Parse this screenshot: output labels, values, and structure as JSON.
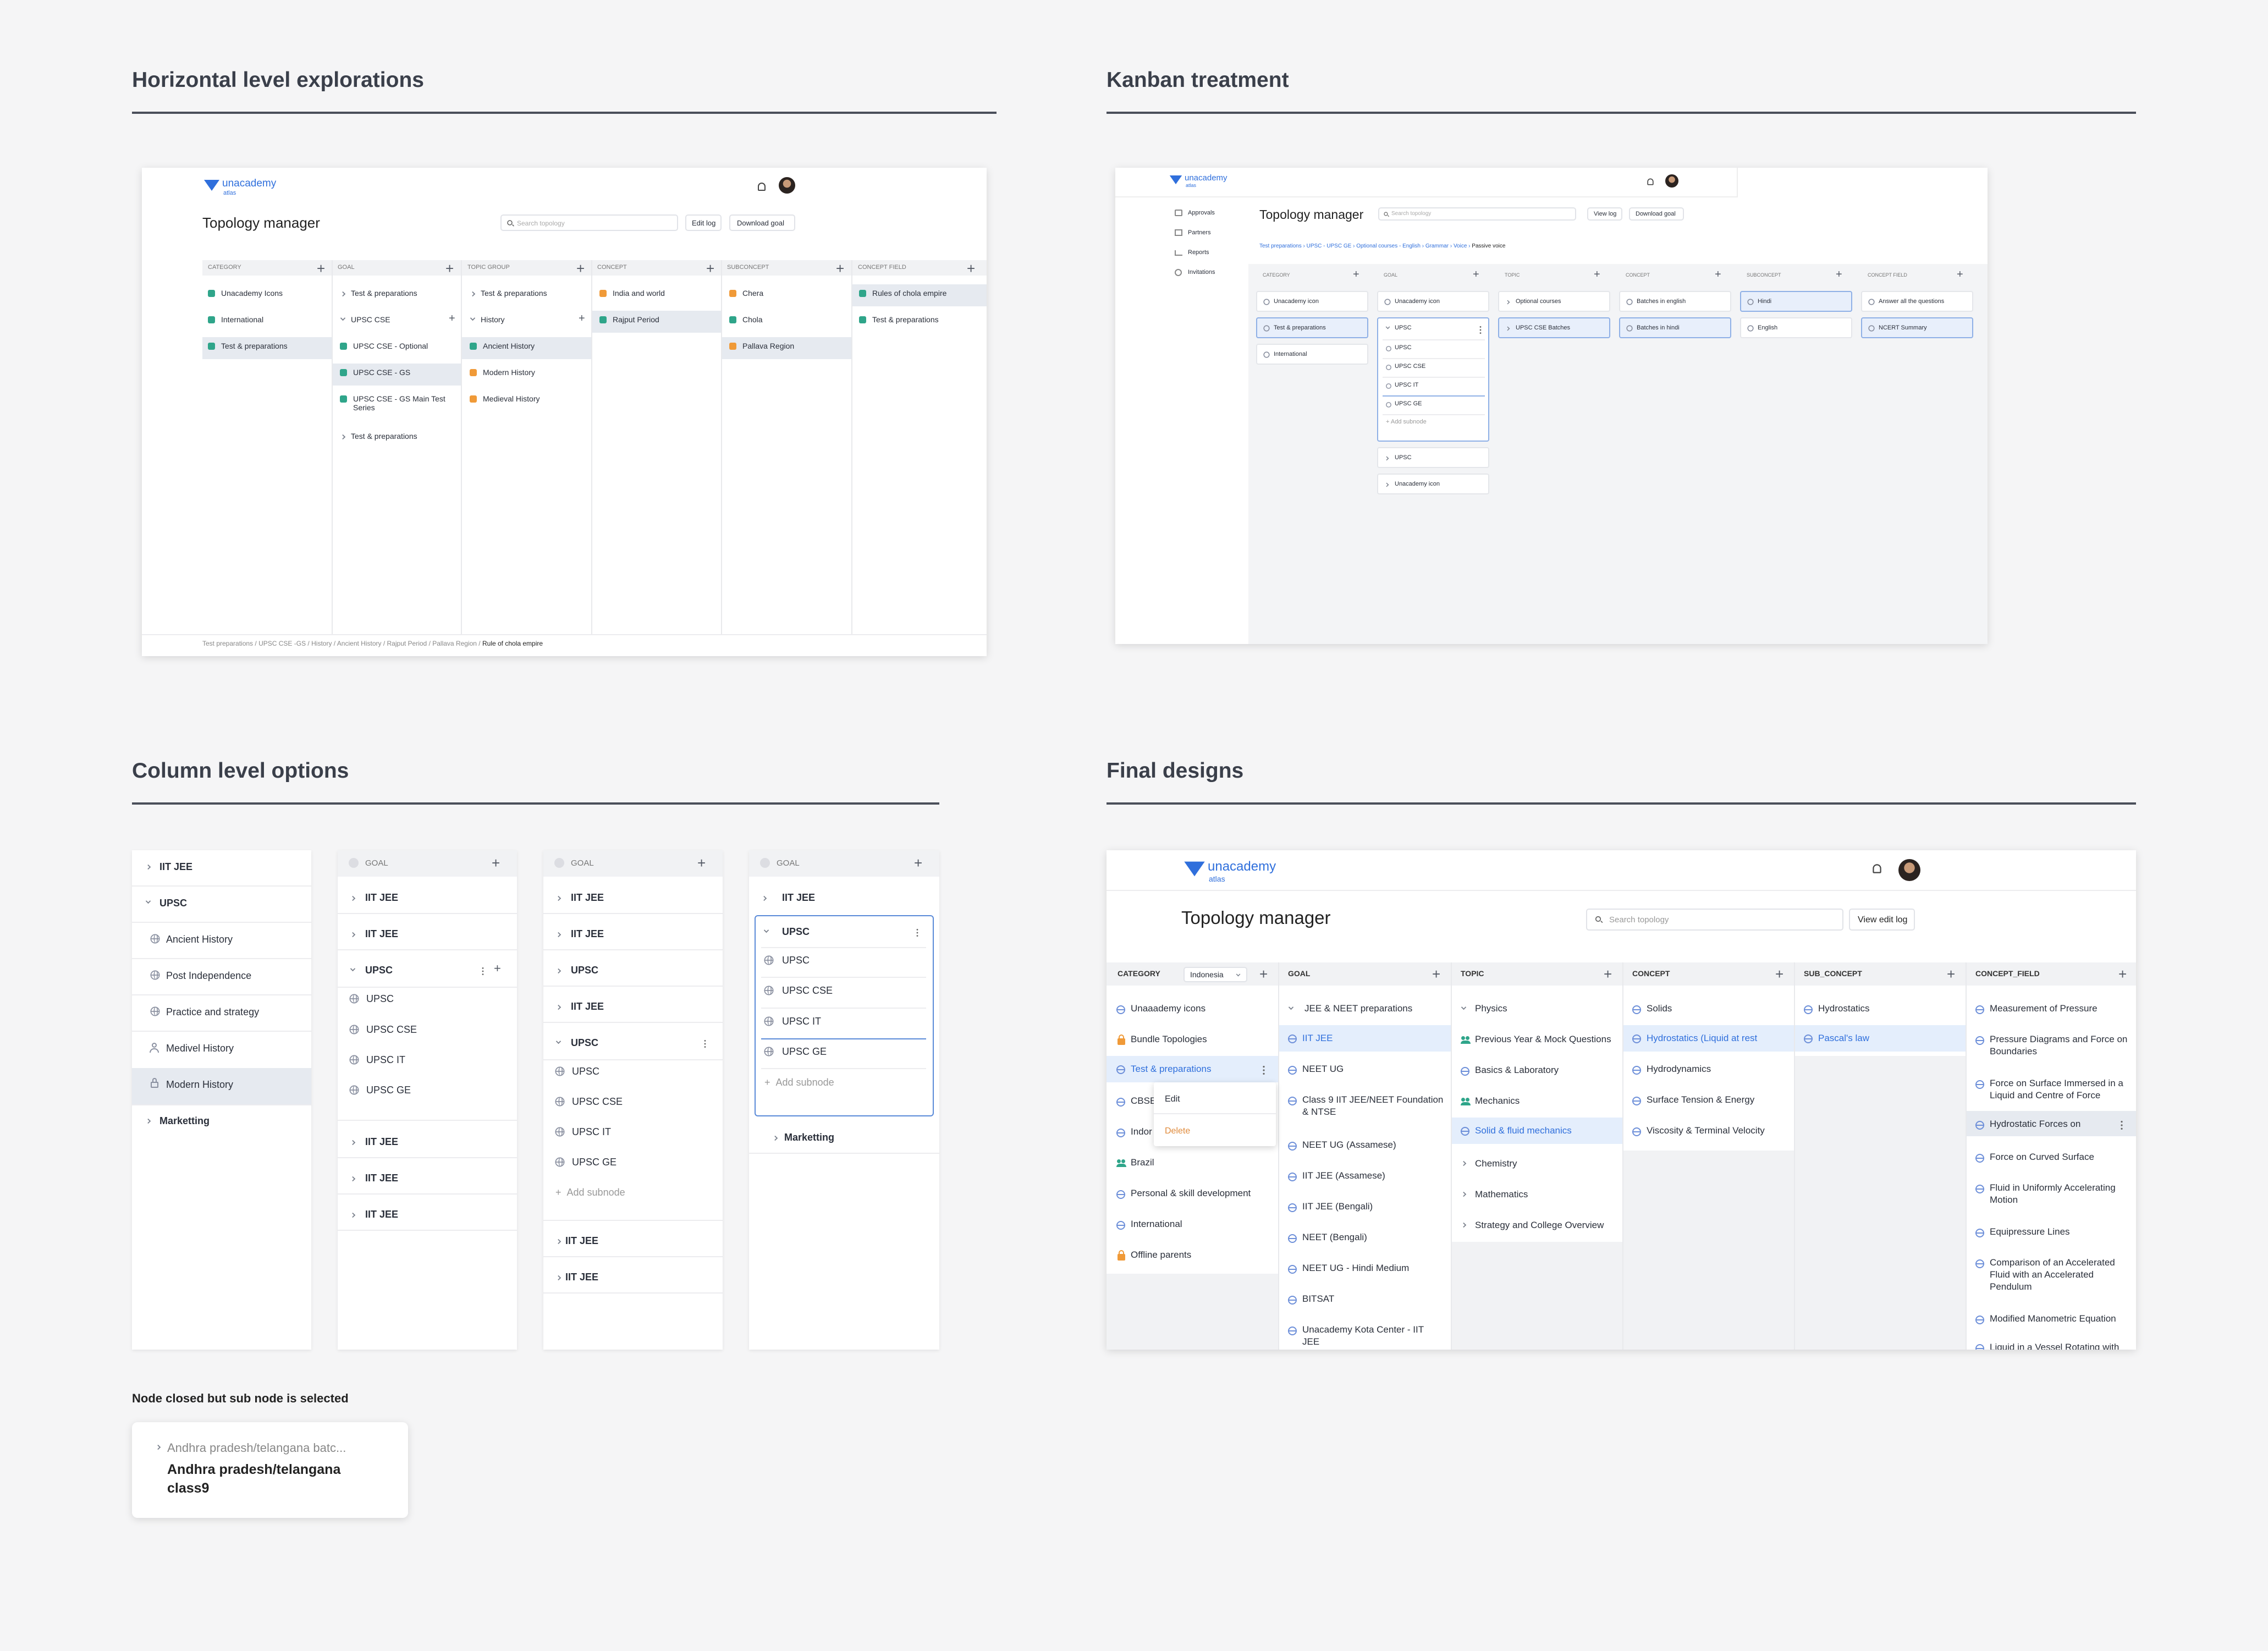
{
  "sections": {
    "horizontal": "Horizontal level explorations",
    "kanban": "Kanban treatment",
    "column": "Column level options",
    "final": "Final designs"
  },
  "brand": {
    "name": "unacademy",
    "sub": "atlas",
    "color": "#2f6fdc"
  },
  "colors": {
    "accent": "#2f6fdc",
    "green": "#2fa58a",
    "orange": "#f09a38",
    "selected_bg": "#e4eefc",
    "hover_bg": "#e6eaf0"
  },
  "h": {
    "title": "Topology manager",
    "search_placeholder": "Search topology",
    "edit_log": "Edit log",
    "download_goal": "Download goal",
    "columns": [
      {
        "header": "CATEGORY",
        "items": [
          "Unacademy Icons",
          "International",
          "Test & preparations"
        ]
      },
      {
        "header": "GOAL",
        "items": [
          "Test & preparations",
          "UPSC CSE",
          "UPSC CSE - Optional",
          "UPSC CSE - GS",
          "UPSC CSE - GS Main Test Series",
          "Test & preparations"
        ]
      },
      {
        "header": "TOPIC GROUP",
        "items": [
          "Test & preparations",
          "History",
          "Ancient History",
          "Modern History",
          "Medieval History"
        ]
      },
      {
        "header": "CONCEPT",
        "items": [
          "India and world",
          "Rajput Period"
        ]
      },
      {
        "header": "SUBCONCEPT",
        "items": [
          "Chera",
          "Chola",
          "Pallava Region"
        ]
      },
      {
        "header": "CONCEPT FIELD",
        "items": [
          "Rules of chola empire",
          "Test & preparations"
        ]
      }
    ],
    "breadcrumb": [
      "Test preparations",
      "UPSC CSE -GS",
      "History",
      "Ancient History",
      "Rajput Period",
      "Pallava Region"
    ],
    "breadcrumb_current": "Rule of chola empire"
  },
  "k": {
    "title": "Topology manager",
    "search_placeholder": "Search topology",
    "view_log": "View log",
    "download_goal": "Download goal",
    "nav": [
      "Approvals",
      "Partners",
      "Reports",
      "Invitations"
    ],
    "breadcrumb": [
      "Test preparations",
      "UPSC - UPSC GE",
      "Optional courses - English",
      "Grammar",
      "Voice"
    ],
    "breadcrumb_current": "Passive voice",
    "columns": [
      {
        "header": "CATEGORY",
        "items": [
          "Unacademy icon",
          "Test & preparations",
          "International"
        ]
      },
      {
        "header": "GOAL",
        "items": [
          "Unacademy icon",
          "UPSC",
          "UPSC",
          "UPSC CSE",
          "UPSC IT",
          "UPSC GE",
          "Add subnode",
          "UPSC",
          "Unacademy icon"
        ]
      },
      {
        "header": "TOPIC",
        "items": [
          "Optional courses",
          "UPSC CSE Batches"
        ]
      },
      {
        "header": "CONCEPT",
        "items": [
          "Batches in english",
          "Batches in hindi"
        ]
      },
      {
        "header": "SUBCONCEPT",
        "items": [
          "Hindi",
          "English"
        ]
      },
      {
        "header": "CONCEPT FIELD",
        "items": [
          "Answer all the questions",
          "NCERT Summary"
        ]
      }
    ]
  },
  "c": {
    "panel1": [
      "IIT JEE",
      "UPSC",
      "Ancient History",
      "Post Independence",
      "Practice and strategy",
      "Medivel History",
      "Modern History",
      "Marketting"
    ],
    "goal_label": "GOAL",
    "panel2": [
      "IIT JEE",
      "IIT JEE",
      "UPSC",
      "UPSC",
      "UPSC CSE",
      "UPSC IT",
      "UPSC GE",
      "IIT JEE",
      "IIT JEE",
      "IIT JEE"
    ],
    "panel3": [
      "IIT JEE",
      "IIT JEE",
      "UPSC",
      "IIT JEE",
      "UPSC",
      "UPSC",
      "UPSC CSE",
      "UPSC IT",
      "UPSC GE",
      "Add subnode",
      "IIT JEE",
      "IIT JEE"
    ],
    "panel4": [
      "IIT JEE",
      "UPSC",
      "UPSC",
      "UPSC CSE",
      "UPSC IT",
      "UPSC GE",
      "Add subnode",
      "Marketting"
    ],
    "note_title": "Node closed but sub node is selected",
    "note_parent": "Andhra pradesh/telangana batc...",
    "note_child_1": "Andhra pradesh/telangana",
    "note_child_2": "class9"
  },
  "f": {
    "title": "Topology manager",
    "search_placeholder": "Search topology",
    "view_edit_log": "View edit log",
    "category_filter": "Indonesia",
    "menu_edit": "Edit",
    "menu_delete": "Delete",
    "headers": [
      "CATEGORY",
      "GOAL",
      "TOPIC",
      "CONCEPT",
      "SUB_CONCEPT",
      "CONCEPT_FIELD"
    ],
    "category": [
      "Unaaademy icons",
      "Bundle Topologies",
      "Test & preparations",
      "CBSE",
      "Indor",
      "Brazil",
      "Personal & skill development",
      "International",
      "Offline parents"
    ],
    "goal": [
      "JEE & NEET preparations",
      "IIT JEE",
      "NEET UG",
      "Class 9 IIT JEE/NEET Foundation",
      "& NTSE",
      "NEET UG (Assamese)",
      "IIT JEE (Assamese)",
      "IIT JEE (Bengali)",
      "NEET (Bengali)",
      "NEET UG - Hindi Medium",
      "BITSAT",
      "Unacademy Kota Center - IIT",
      "JEE"
    ],
    "topic": [
      "Physics",
      "Previous Year & Mock Questions",
      "Basics & Laboratory",
      "Mechanics",
      "Solid & fluid mechanics",
      "Chemistry",
      "Mathematics",
      "Strategy and College Overview"
    ],
    "concept": [
      "Solids",
      "Hydrostatics (Liquid at rest",
      "Hydrodynamics",
      "Surface Tension & Energy",
      "Viscosity & Terminal Velocity"
    ],
    "sub_concept": [
      "Hydrostatics",
      "Pascal's law"
    ],
    "concept_field": [
      "Measurement of Pressure",
      "Pressure Diagrams and Force on",
      "Boundaries",
      "Force on Surface Immersed in a",
      "Liquid and Centre of Force",
      "Hydrostatic Forces on",
      "Force on Curved Surface",
      "Fluid in Uniformly Accelerating",
      "Motion",
      "Equipressure Lines",
      "Comparison of an Accelerated",
      "Fluid with an Accelerated",
      "Pendulum",
      "Modified Manometric Equation",
      "Liquid in a Vessel Rotating with"
    ]
  }
}
